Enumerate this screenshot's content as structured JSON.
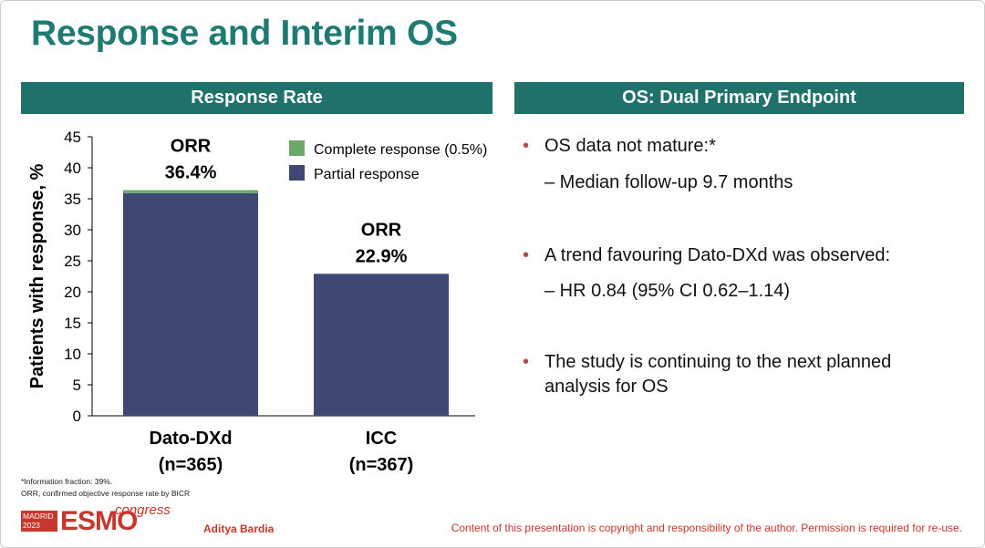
{
  "slide": {
    "title": "Response and Interim OS",
    "left_header": "Response Rate",
    "right_header": "OS: Dual Primary Endpoint"
  },
  "chart_data": {
    "type": "bar",
    "stacked": true,
    "ylabel": "Patients with response, %",
    "ylim": [
      0,
      45
    ],
    "yticks": [
      0,
      5,
      10,
      15,
      20,
      25,
      30,
      35,
      40,
      45
    ],
    "grid": false,
    "legend_position": "top-right",
    "categories": [
      "Dato-DXd",
      "ICC"
    ],
    "category_sublabels": [
      "(n=365)",
      "(n=367)"
    ],
    "series": [
      {
        "name": "Partial response",
        "color": "#3f4874",
        "values": [
          35.9,
          22.9
        ]
      },
      {
        "name": "Complete response (0.5%)",
        "color": "#6aaa64",
        "values": [
          0.5,
          0
        ]
      }
    ],
    "bar_labels": [
      {
        "line1": "ORR",
        "line2": "36.4%",
        "total": 36.4
      },
      {
        "line1": "ORR",
        "line2": "22.9%",
        "total": 22.9
      }
    ]
  },
  "os_panel": {
    "bullets": [
      {
        "text": "OS data not mature:*",
        "sub": "– Median follow-up 9.7 months"
      },
      {
        "text": "A trend favouring Dato-DXd was observed:",
        "sub": "– HR 0.84 (95% CI 0.62–1.14)"
      },
      {
        "text": "The study is continuing to the next planned analysis for OS",
        "sub": ""
      }
    ]
  },
  "footnotes": [
    "*Information fraction: 39%.",
    "ORR, confirmed objective response rate by BICR"
  ],
  "footer": {
    "logo_tag": "MADRID 2023",
    "logo_brand": "ESMO",
    "logo_sub": "congress",
    "author": "Aditya Bardia",
    "copyright": "Content of this presentation is copyright and responsibility of the author. Permission is required for re-use."
  },
  "colors": {
    "title": "#1f7a72",
    "header_bg": "#1f716b",
    "accent_red": "#c9362b"
  }
}
